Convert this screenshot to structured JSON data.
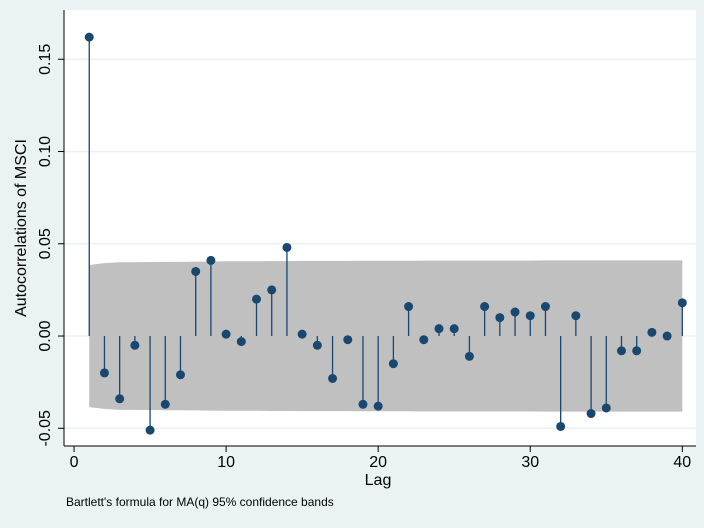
{
  "chart_data": {
    "type": "stem",
    "y_label": "Autocorrelations of MSCI",
    "x_label": "Lag",
    "note": "Bartlett's formula for MA(q) 95% confidence bands",
    "x": [
      1,
      2,
      3,
      4,
      5,
      6,
      7,
      8,
      9,
      10,
      11,
      12,
      13,
      14,
      15,
      16,
      17,
      18,
      19,
      20,
      21,
      22,
      23,
      24,
      25,
      26,
      27,
      28,
      29,
      30,
      31,
      32,
      33,
      34,
      35,
      36,
      37,
      38,
      39,
      40
    ],
    "values": [
      0.162,
      -0.02,
      -0.034,
      -0.005,
      -0.051,
      -0.037,
      -0.021,
      0.035,
      0.041,
      0.001,
      -0.003,
      0.02,
      0.025,
      0.048,
      0.001,
      -0.005,
      -0.023,
      -0.002,
      -0.037,
      -0.038,
      -0.015,
      0.016,
      -0.002,
      0.004,
      0.004,
      -0.011,
      0.016,
      0.01,
      0.013,
      0.011,
      0.016,
      -0.049,
      0.011,
      -0.042,
      -0.039,
      -0.008,
      -0.008,
      0.002,
      0.0,
      0.018
    ],
    "color": "#1a476f",
    "confidence_band": {
      "color": "#c0c0c0",
      "upper": [
        0.0385,
        0.0395,
        0.04,
        0.04,
        0.0401,
        0.0402,
        0.0402,
        0.0403,
        0.0404,
        0.0405,
        0.0405,
        0.0405,
        0.0406,
        0.0406,
        0.0407,
        0.0407,
        0.0407,
        0.0407,
        0.0408,
        0.0408,
        0.0408,
        0.0408,
        0.0409,
        0.0409,
        0.0409,
        0.0409,
        0.0409,
        0.0409,
        0.0409,
        0.0409,
        0.041,
        0.041,
        0.041,
        0.041,
        0.041,
        0.041,
        0.041,
        0.041,
        0.041,
        0.041
      ],
      "lower": [
        -0.0385,
        -0.0395,
        -0.04,
        -0.04,
        -0.0401,
        -0.0402,
        -0.0402,
        -0.0403,
        -0.0404,
        -0.0405,
        -0.0405,
        -0.0405,
        -0.0406,
        -0.0406,
        -0.0407,
        -0.0407,
        -0.0407,
        -0.0407,
        -0.0408,
        -0.0408,
        -0.0408,
        -0.0408,
        -0.0409,
        -0.0409,
        -0.0409,
        -0.0409,
        -0.0409,
        -0.0409,
        -0.0409,
        -0.0409,
        -0.041,
        -0.041,
        -0.041,
        -0.041,
        -0.041,
        -0.041,
        -0.041,
        -0.041,
        -0.041,
        -0.041
      ]
    },
    "xlim": [
      -0.66,
      40.9
    ],
    "ylim": [
      -0.0596,
      0.1767
    ],
    "xticks": [
      0,
      10,
      20,
      30,
      40
    ],
    "yticks": [
      {
        "value": -0.05,
        "label": "-0.05"
      },
      {
        "value": 0,
        "label": "0.00"
      },
      {
        "value": 0.05,
        "label": "0.05"
      },
      {
        "value": 0.1,
        "label": "0.10"
      },
      {
        "value": 0.15,
        "label": "0.15"
      }
    ],
    "grid": true
  }
}
